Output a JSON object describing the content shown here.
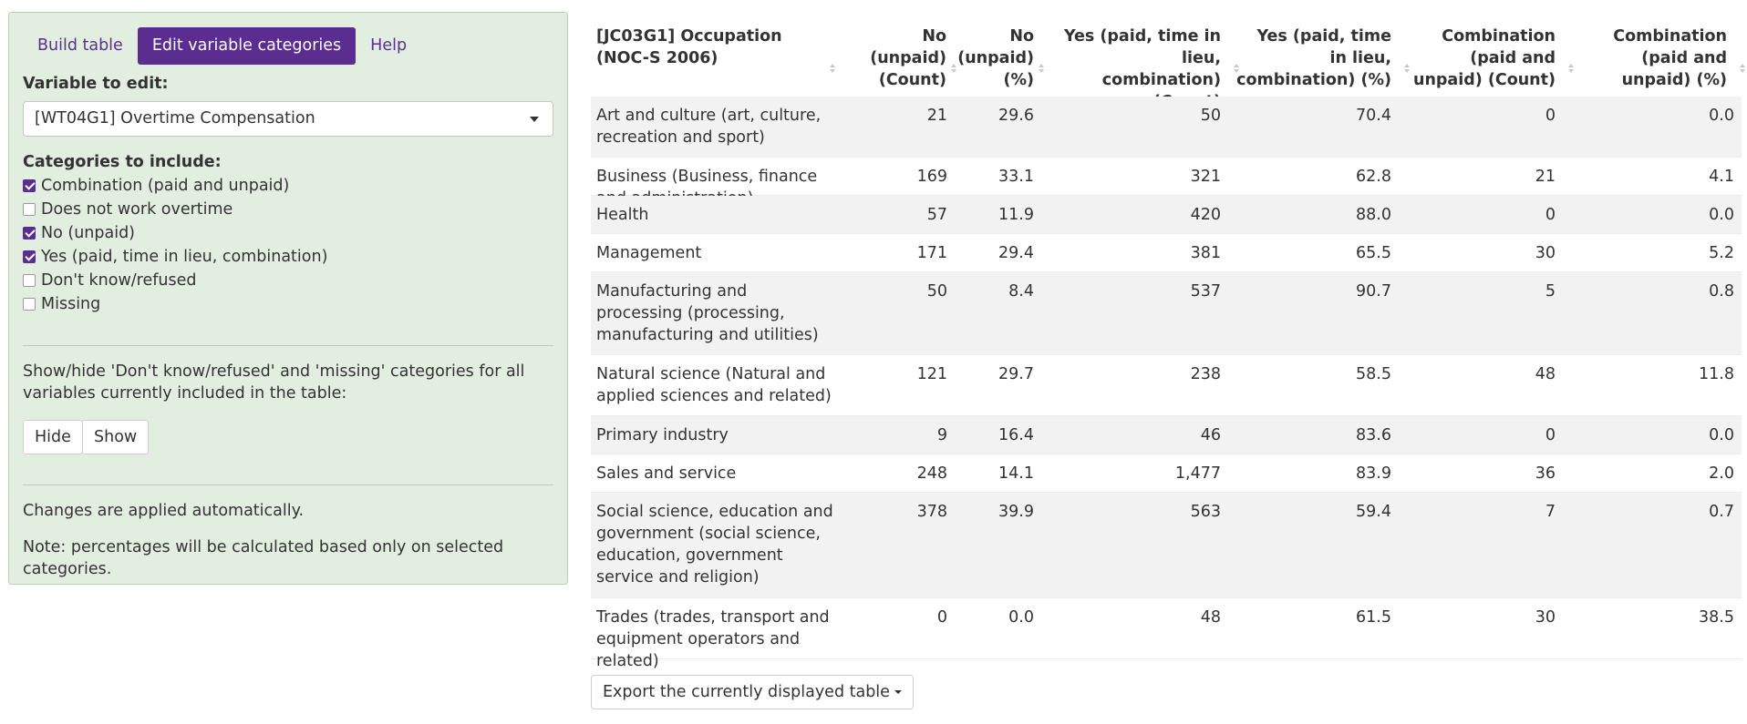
{
  "tabs": [
    {
      "label": "Build table",
      "active": false
    },
    {
      "label": "Edit variable categories",
      "active": true
    },
    {
      "label": "Help",
      "active": false
    }
  ],
  "variable_label": "Variable to edit:",
  "variable_value": "[WT04G1] Overtime Compensation",
  "categories_label": "Categories to include:",
  "categories": [
    {
      "label": "Combination (paid and unpaid)",
      "checked": true
    },
    {
      "label": "Does not work overtime",
      "checked": false
    },
    {
      "label": "No (unpaid)",
      "checked": true
    },
    {
      "label": "Yes (paid, time in lieu, combination)",
      "checked": true
    },
    {
      "label": "Don't know/refused",
      "checked": false
    },
    {
      "label": "Missing",
      "checked": false
    }
  ],
  "showhide_text": "Show/hide 'Don't know/refused' and 'missing' categories for all variables currently included in the table:",
  "hide_label": "Hide",
  "show_label": "Show",
  "auto_note": "Changes are applied automatically.",
  "pct_note": "Note: percentages will be calculated based only on selected categories.",
  "table": {
    "headers": [
      "[JC03G1] Occupation (NOC-S 2006)",
      "No (unpaid) (Count)",
      "No (unpaid) (%)",
      "Yes (paid, time in lieu, combination) (Count)",
      "Yes (paid, time in lieu, combination) (%)",
      "Combination (paid and unpaid) (Count)",
      "Combination (paid and unpaid) (%)"
    ],
    "rows": [
      [
        "Art and culture (art, culture, recreation and sport)",
        "21",
        "29.6",
        "50",
        "70.4",
        "0",
        "0.0"
      ],
      [
        "Business (Business, finance and administration)",
        "169",
        "33.1",
        "321",
        "62.8",
        "21",
        "4.1"
      ],
      [
        "Health",
        "57",
        "11.9",
        "420",
        "88.0",
        "0",
        "0.0"
      ],
      [
        "Management",
        "171",
        "29.4",
        "381",
        "65.5",
        "30",
        "5.2"
      ],
      [
        "Manufacturing and processing (processing, manufacturing and utilities)",
        "50",
        "8.4",
        "537",
        "90.7",
        "5",
        "0.8"
      ],
      [
        "Natural science (Natural and applied sciences and related)",
        "121",
        "29.7",
        "238",
        "58.5",
        "48",
        "11.8"
      ],
      [
        "Primary industry",
        "9",
        "16.4",
        "46",
        "83.6",
        "0",
        "0.0"
      ],
      [
        "Sales and service",
        "248",
        "14.1",
        "1,477",
        "83.9",
        "36",
        "2.0"
      ],
      [
        "Social science, education and government (social science, education, government service and religion)",
        "378",
        "39.9",
        "563",
        "59.4",
        "7",
        "0.7"
      ],
      [
        "Trades (trades, transport and equipment operators and related)",
        "0",
        "0.0",
        "48",
        "61.5",
        "30",
        "38.5"
      ]
    ]
  },
  "export_label": "Export the currently displayed table",
  "colors": {
    "accent": "#5c2d91",
    "panel_bg": "#e2eee0",
    "stripe": "#f2f2f2"
  }
}
